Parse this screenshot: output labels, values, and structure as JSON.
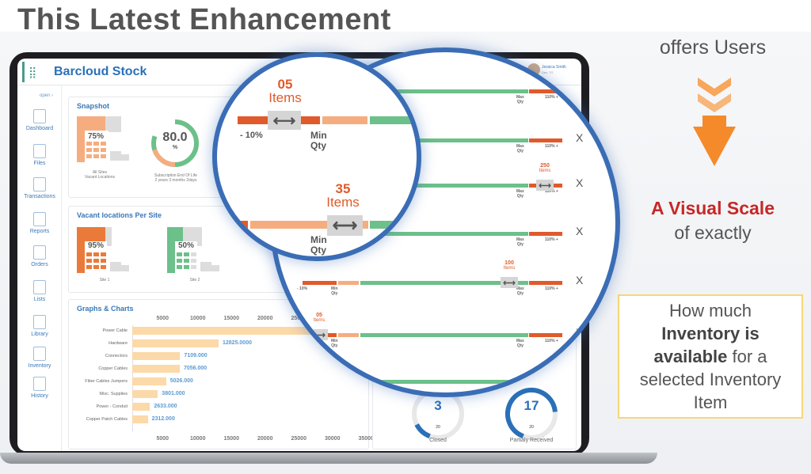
{
  "headline": "This Latest Enhancement",
  "side_text": {
    "offers": "offers Users",
    "visual": "A Visual  Scale",
    "exactly": "of exactly",
    "box": {
      "l1": "How much",
      "l2": "Inventory is",
      "l3a": "available",
      "l3b": " for a",
      "l4": "selected Inventory",
      "l5": "Item"
    }
  },
  "app": {
    "title": "Barcloud Stock",
    "open": "open ›",
    "user": {
      "name": "Jessica Smith",
      "sub": "Dev. TG"
    }
  },
  "sidebar": [
    {
      "label": "Dashboard",
      "icon": "home-icon"
    },
    {
      "label": "Files",
      "icon": "box-icon"
    },
    {
      "label": "Transactions",
      "icon": "check-circle-icon"
    },
    {
      "label": "Reports",
      "icon": "bar-chart-icon"
    },
    {
      "label": "Orders",
      "icon": "document-icon"
    },
    {
      "label": "Lists",
      "icon": "list-icon"
    },
    {
      "label": "Library",
      "icon": "image-icon"
    },
    {
      "label": "Inventory",
      "icon": "box-icon"
    },
    {
      "label": "History",
      "icon": "book-icon"
    }
  ],
  "snapshot": {
    "title": "Snapshot",
    "vacant_pct": "75%",
    "vacant_l1": "All Sites",
    "vacant_l2": "Vacant Locations",
    "gauge_value": "80.0",
    "gauge_unit": "%",
    "gauge_l1": "Subscription End Of Life",
    "gauge_l2": "2 years 3 months 2days"
  },
  "vacant": {
    "title": "Vacant locations Per Site",
    "sites": [
      {
        "pct": "95%",
        "label": "Site 1",
        "pct_num": 95
      },
      {
        "pct": "50%",
        "label": "Site 2",
        "pct_num": 50
      }
    ]
  },
  "graphs": {
    "title": "Graphs & Charts",
    "ticks": [
      "5000",
      "10000",
      "15000",
      "20000",
      "25000",
      "30000",
      "35000"
    ],
    "bars": [
      {
        "label": "Power Cable",
        "value": 30500,
        "text": ""
      },
      {
        "label": "Hardware",
        "value": 12825,
        "text": "12825.0000"
      },
      {
        "label": "Connectors",
        "value": 7109,
        "text": "7109.000"
      },
      {
        "label": "Copper Cables",
        "value": 7056,
        "text": "7056.000"
      },
      {
        "label": "Fiber Cables Jumpers",
        "value": 5026,
        "text": "5026.000"
      },
      {
        "label": "Misc. Supplies",
        "value": 3801,
        "text": "3801.000"
      },
      {
        "label": "Power - Conduit",
        "value": 2633,
        "text": "2633.000"
      },
      {
        "label": "Copper Patch Cables",
        "value": 2312,
        "text": "2312.000"
      }
    ]
  },
  "gauges": [
    {
      "value": "3",
      "max": "20",
      "label": "Closed",
      "fraction": 0.15
    },
    {
      "value": "17",
      "max": "20",
      "label": "Partialy Received",
      "fraction": 0.85
    }
  ],
  "scale": {
    "minus": "- 10%",
    "min": "Min",
    "qty": "Qty",
    "max": "Max",
    "plus": "110% +",
    "x": "X",
    "items": "Items",
    "markers": [
      {
        "count": "250"
      },
      {
        "count": "100"
      },
      {
        "count": "05"
      }
    ],
    "zoom": [
      {
        "count": "05"
      },
      {
        "count": "35"
      }
    ]
  }
}
